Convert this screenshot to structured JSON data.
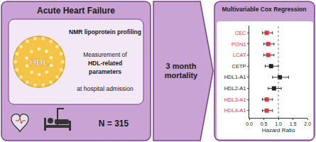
{
  "panels": {
    "left": {
      "title": "Acute Heart Failure",
      "box_lines": [
        "NMR lipoprotein profiling",
        "Measurement of",
        "HDL-related",
        "parameters",
        "at hospital admission"
      ],
      "particle_label": "HDL",
      "count": "N = 315"
    },
    "middle": {
      "lines": [
        "3 month",
        "mortality"
      ]
    }
  },
  "chart_data": {
    "type": "forest",
    "title": "Multivariable Cox Regression",
    "categories": [
      "CEC",
      "PON1",
      "LCAT",
      "CETP",
      "HDL1-A1",
      "HDL2-A1",
      "HDL3-A1",
      "HDL4-A1"
    ],
    "values": [
      0.6,
      0.65,
      0.65,
      0.75,
      1.05,
      0.85,
      0.6,
      0.6
    ],
    "lower": [
      0.45,
      0.5,
      0.5,
      0.55,
      0.8,
      0.65,
      0.45,
      0.45
    ],
    "upper": [
      0.8,
      0.85,
      0.85,
      1.0,
      1.35,
      1.1,
      0.8,
      0.8
    ],
    "colors": [
      "#e0393e",
      "#e0393e",
      "#e0393e",
      "#222222",
      "#222222",
      "#222222",
      "#e0393e",
      "#e0393e"
    ],
    "reference_line": 1,
    "x_label": "Hazard Ratio",
    "xlim": [
      0,
      2
    ],
    "xticks": [
      {
        "value": 0,
        "label": "0.0"
      },
      {
        "value": 0.5,
        "label": "0.5"
      },
      {
        "value": 1,
        "label": "1.0"
      },
      {
        "value": 1.5,
        "label": "1.5"
      },
      {
        "value": 2,
        "label": "2.0"
      }
    ],
    "marker": "square",
    "grid": false
  }
}
